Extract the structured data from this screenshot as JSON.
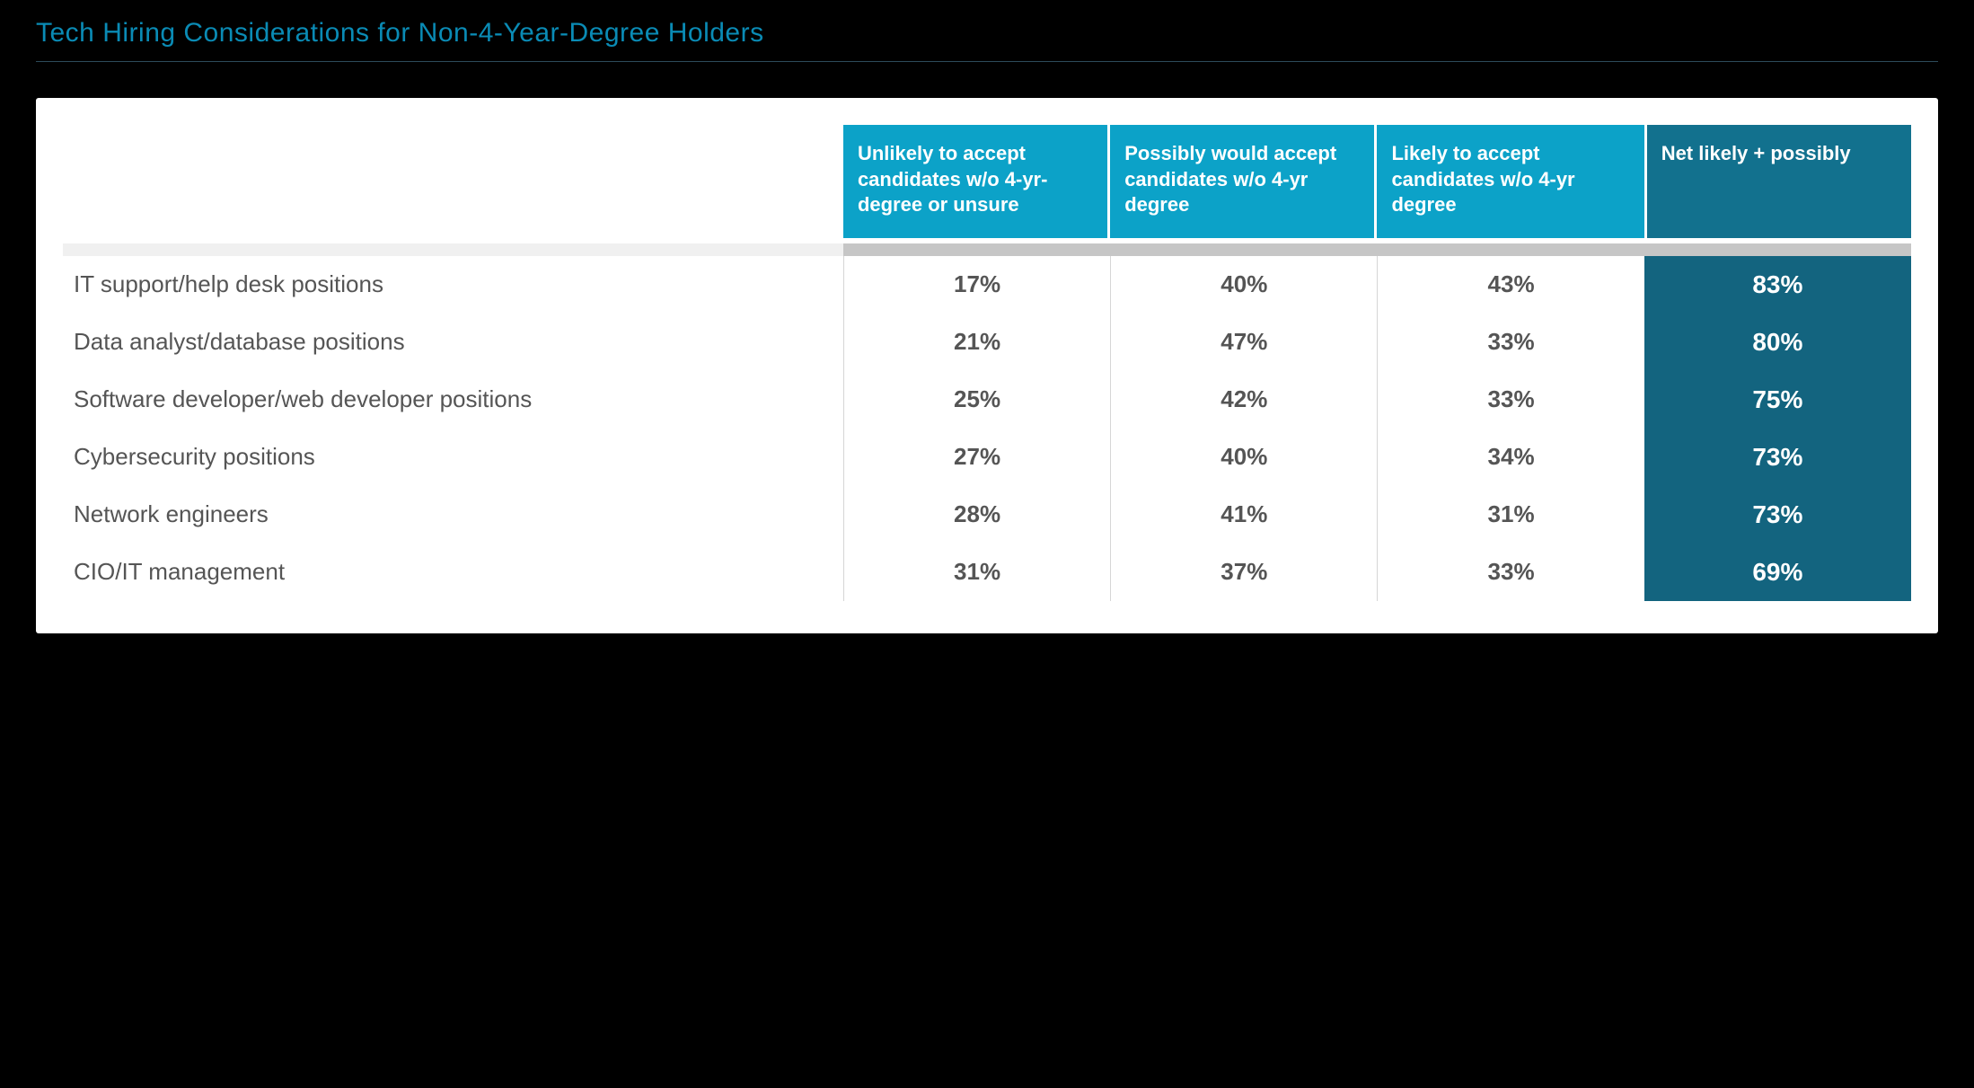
{
  "title": "Tech Hiring Considerations for Non-4-Year-Degree Holders",
  "colors": {
    "page_bg": "#000000",
    "title_color": "#0a8bb5",
    "title_rule": "#2d4a5a",
    "card_bg": "#ffffff",
    "header_light_bg": "#0ca2c8",
    "header_dark_bg": "#12718e",
    "header_text": "#ffffff",
    "spacer_gray": "#c6c6c6",
    "spacer_light": "#f0f0f0",
    "body_text": "#555555",
    "net_cell_bg": "#13647f",
    "cell_divider": "#d6d6d6"
  },
  "typography": {
    "title_fontsize": 30,
    "header_fontsize": 22,
    "body_fontsize": 26,
    "net_fontsize": 28,
    "font_family": "Helvetica Neue, Arial, sans-serif"
  },
  "table": {
    "type": "table",
    "columns": [
      {
        "key": "label",
        "header": ""
      },
      {
        "key": "unlikely",
        "header": "Unlikely to accept candidates w/o 4-yr-degree or unsure"
      },
      {
        "key": "possibly",
        "header": "Possibly would accept candidates w/o 4-yr degree"
      },
      {
        "key": "likely",
        "header": "Likely to accept candidates w/o 4-yr degree"
      },
      {
        "key": "net",
        "header": "Net likely + possibly"
      }
    ],
    "rows": [
      {
        "label": "IT support/help desk positions",
        "unlikely": "17%",
        "possibly": "40%",
        "likely": "43%",
        "net": "83%"
      },
      {
        "label": "Data analyst/database positions",
        "unlikely": "21%",
        "possibly": "47%",
        "likely": "33%",
        "net": "80%"
      },
      {
        "label": "Software developer/web developer positions",
        "unlikely": "25%",
        "possibly": "42%",
        "likely": "33%",
        "net": "75%"
      },
      {
        "label": "Cybersecurity positions",
        "unlikely": "27%",
        "possibly": "40%",
        "likely": "34%",
        "net": "73%"
      },
      {
        "label": "Network engineers",
        "unlikely": "28%",
        "possibly": "41%",
        "likely": "31%",
        "net": "73%"
      },
      {
        "label": "CIO/IT management",
        "unlikely": "31%",
        "possibly": "37%",
        "likely": "33%",
        "net": "69%"
      }
    ],
    "column_widths_pct": [
      38,
      13,
      13,
      13,
      13
    ]
  }
}
